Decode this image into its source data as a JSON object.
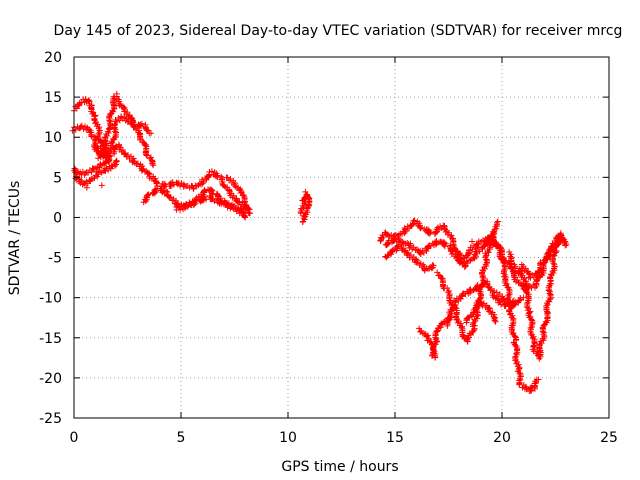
{
  "chart_data": {
    "type": "scatter",
    "title": "Day 145 of 2023, Sidereal Day-to-day VTEC variation (SDTVAR) for receiver mrcg",
    "xlabel": "GPS time / hours",
    "ylabel": "SDTVAR / TECUs",
    "xlim": [
      0,
      25
    ],
    "ylim": [
      -25,
      20
    ],
    "x_ticks": [
      "0",
      "5",
      "10",
      "15",
      "20",
      "25"
    ],
    "y_ticks": [
      "-25",
      "-20",
      "-15",
      "-10",
      "-5",
      "0",
      "5",
      "10",
      "15",
      "20"
    ],
    "grid": true,
    "marker": "+",
    "color": "#ff0000",
    "tracks": [
      [
        [
          0.0,
          13.5
        ],
        [
          0.3,
          14.5
        ],
        [
          0.6,
          14.6
        ],
        [
          0.8,
          14.0
        ],
        [
          1.0,
          12.5
        ],
        [
          1.2,
          10.0
        ],
        [
          1.4,
          8.0
        ],
        [
          1.6,
          7.0
        ]
      ],
      [
        [
          0.0,
          11.0
        ],
        [
          0.3,
          11.3
        ],
        [
          0.6,
          11.0
        ],
        [
          0.9,
          10.0
        ],
        [
          1.2,
          8.5
        ],
        [
          1.5,
          7.5
        ],
        [
          1.8,
          9.0
        ],
        [
          2.0,
          12.0
        ],
        [
          2.2,
          12.5
        ],
        [
          2.5,
          12.0
        ],
        [
          2.9,
          11.5
        ],
        [
          3.3,
          11.5
        ],
        [
          3.6,
          10.5
        ]
      ],
      [
        [
          1.0,
          9.0
        ],
        [
          1.2,
          7.5
        ],
        [
          1.4,
          8.0
        ],
        [
          1.6,
          11.0
        ],
        [
          1.8,
          13.5
        ],
        [
          1.95,
          15.2
        ],
        [
          2.1,
          14.5
        ],
        [
          2.4,
          13.5
        ],
        [
          2.8,
          11.5
        ],
        [
          3.2,
          9.5
        ],
        [
          3.5,
          7.5
        ],
        [
          3.7,
          6.5
        ]
      ],
      [
        [
          0.0,
          6.0
        ],
        [
          0.3,
          5.5
        ],
        [
          0.6,
          5.5
        ],
        [
          0.9,
          6.0
        ],
        [
          1.2,
          6.5
        ],
        [
          1.5,
          7.0
        ],
        [
          1.8,
          8.0
        ],
        [
          2.1,
          9.0
        ],
        [
          2.4,
          8.0
        ],
        [
          2.8,
          7.0
        ],
        [
          3.2,
          6.0
        ],
        [
          3.6,
          5.0
        ],
        [
          4.0,
          4.0
        ],
        [
          4.4,
          4.0
        ],
        [
          4.8,
          4.3
        ],
        [
          5.2,
          4.0
        ],
        [
          5.6,
          3.7
        ],
        [
          6.0,
          4.5
        ],
        [
          6.4,
          5.6
        ],
        [
          6.8,
          5.0
        ],
        [
          7.2,
          3.5
        ],
        [
          7.6,
          2.2
        ],
        [
          8.0,
          1.5
        ],
        [
          8.2,
          1.0
        ]
      ],
      [
        [
          0.0,
          5.0
        ],
        [
          0.2,
          4.8
        ],
        [
          0.5,
          4.2
        ],
        [
          0.8,
          4.5
        ],
        [
          1.1,
          5.5
        ],
        [
          1.5,
          6.0
        ],
        [
          1.8,
          6.5
        ],
        [
          2.0,
          7.0
        ]
      ],
      [
        [
          3.2,
          2.0
        ],
        [
          3.6,
          3.0
        ],
        [
          4.0,
          3.5
        ],
        [
          4.4,
          3.0
        ],
        [
          4.8,
          1.5
        ],
        [
          5.3,
          1.5
        ],
        [
          5.8,
          2.5
        ],
        [
          6.2,
          3.5
        ],
        [
          6.6,
          3.0
        ],
        [
          7.0,
          2.0
        ],
        [
          7.4,
          1.5
        ],
        [
          7.8,
          1.0
        ],
        [
          8.2,
          0.5
        ]
      ],
      [
        [
          4.8,
          1.0
        ],
        [
          5.3,
          1.5
        ],
        [
          5.8,
          2.0
        ],
        [
          6.3,
          2.5
        ],
        [
          6.8,
          2.0
        ],
        [
          7.2,
          1.5
        ],
        [
          7.6,
          1.0
        ],
        [
          8.0,
          0.0
        ]
      ],
      [
        [
          7.2,
          5.0
        ],
        [
          7.5,
          4.0
        ],
        [
          7.8,
          3.0
        ],
        [
          8.2,
          1.0
        ]
      ],
      [
        [
          10.65,
          0.5
        ],
        [
          10.75,
          2.0
        ],
        [
          10.85,
          3.0
        ],
        [
          10.95,
          2.0
        ],
        [
          10.85,
          1.0
        ],
        [
          10.75,
          0.0
        ],
        [
          10.7,
          -0.5
        ]
      ],
      [
        [
          14.3,
          -3.0
        ],
        [
          14.6,
          -2.0
        ],
        [
          15.0,
          -2.5
        ],
        [
          15.5,
          -1.5
        ],
        [
          15.9,
          -0.5
        ],
        [
          16.3,
          -1.5
        ],
        [
          16.8,
          -2.0
        ],
        [
          17.3,
          -1.0
        ],
        [
          17.8,
          -3.5
        ],
        [
          18.1,
          -5.5
        ],
        [
          18.5,
          -4.0
        ],
        [
          19.0,
          -3.0
        ],
        [
          19.5,
          -2.5
        ]
      ],
      [
        [
          14.5,
          -3.5
        ],
        [
          14.8,
          -3.0
        ],
        [
          15.2,
          -2.8
        ],
        [
          15.7,
          -3.5
        ],
        [
          16.2,
          -4.5
        ],
        [
          16.6,
          -3.5
        ],
        [
          17.0,
          -3.0
        ],
        [
          17.5,
          -3.5
        ],
        [
          17.9,
          -5.0
        ],
        [
          18.3,
          -6.0
        ],
        [
          18.8,
          -4.5
        ],
        [
          19.3,
          -3.0
        ],
        [
          19.8,
          -3.5
        ],
        [
          20.4,
          -6.5
        ],
        [
          21.0,
          -9.0
        ],
        [
          21.6,
          -8.5
        ],
        [
          22.2,
          -4.5
        ],
        [
          22.8,
          -2.5
        ]
      ],
      [
        [
          14.5,
          -5.0
        ],
        [
          14.7,
          -4.5
        ],
        [
          15.0,
          -4.0
        ],
        [
          15.3,
          -3.5
        ],
        [
          15.6,
          -4.5
        ],
        [
          16.0,
          -5.5
        ],
        [
          16.4,
          -6.5
        ],
        [
          16.8,
          -6.0
        ]
      ],
      [
        [
          17.0,
          -7.0
        ],
        [
          17.4,
          -9.0
        ],
        [
          17.8,
          -11.5
        ],
        [
          18.1,
          -14.0
        ],
        [
          18.4,
          -15.5
        ],
        [
          18.7,
          -13.5
        ],
        [
          19.0,
          -9.0
        ],
        [
          19.3,
          -4.5
        ],
        [
          19.6,
          -1.5
        ],
        [
          19.8,
          -0.5
        ]
      ],
      [
        [
          16.2,
          -14.0
        ],
        [
          16.5,
          -15.0
        ],
        [
          16.7,
          -16.0
        ],
        [
          16.8,
          -17.5
        ],
        [
          16.9,
          -15.5
        ],
        [
          17.0,
          -14.0
        ],
        [
          17.2,
          -13.5
        ],
        [
          17.5,
          -12.5
        ]
      ],
      [
        [
          17.5,
          -13.5
        ],
        [
          17.6,
          -12.0
        ],
        [
          17.8,
          -10.5
        ],
        [
          18.2,
          -9.5
        ],
        [
          18.6,
          -9.0
        ],
        [
          19.0,
          -8.5
        ],
        [
          19.3,
          -8.0
        ],
        [
          19.6,
          -9.5
        ],
        [
          19.9,
          -10.5
        ],
        [
          20.2,
          -11.0
        ],
        [
          20.5,
          -10.5
        ]
      ],
      [
        [
          18.3,
          -13.0
        ],
        [
          18.7,
          -12.0
        ],
        [
          19.0,
          -10.5
        ],
        [
          19.4,
          -11.5
        ],
        [
          19.7,
          -13.0
        ]
      ],
      [
        [
          19.5,
          -2.0
        ],
        [
          19.9,
          -4.0
        ],
        [
          20.2,
          -7.5
        ],
        [
          20.4,
          -11.5
        ],
        [
          20.6,
          -15.5
        ],
        [
          20.75,
          -19.0
        ],
        [
          20.9,
          -21.0
        ],
        [
          21.2,
          -21.5
        ],
        [
          21.5,
          -21.3
        ],
        [
          21.7,
          -20.2
        ]
      ],
      [
        [
          20.3,
          -4.5
        ],
        [
          20.5,
          -6.0
        ],
        [
          20.7,
          -7.0
        ],
        [
          20.9,
          -6.5
        ],
        [
          21.1,
          -8.5
        ],
        [
          21.3,
          -12.0
        ],
        [
          21.5,
          -16.5
        ],
        [
          21.7,
          -17.5
        ],
        [
          21.9,
          -15.0
        ],
        [
          22.1,
          -12.0
        ],
        [
          22.3,
          -8.0
        ],
        [
          22.5,
          -4.0
        ],
        [
          22.7,
          -2.5
        ],
        [
          22.9,
          -3.0
        ]
      ],
      [
        [
          19.8,
          -9.5
        ],
        [
          20.1,
          -10.5
        ],
        [
          20.4,
          -11.0
        ],
        [
          20.7,
          -10.5
        ],
        [
          21.0,
          -10.0
        ]
      ],
      [
        [
          21.0,
          -6.0
        ],
        [
          21.3,
          -7.5
        ],
        [
          21.6,
          -7.0
        ],
        [
          21.9,
          -5.5
        ],
        [
          22.2,
          -4.5
        ],
        [
          22.5,
          -3.0
        ],
        [
          22.8,
          -2.0
        ],
        [
          22.95,
          -3.5
        ]
      ]
    ]
  }
}
